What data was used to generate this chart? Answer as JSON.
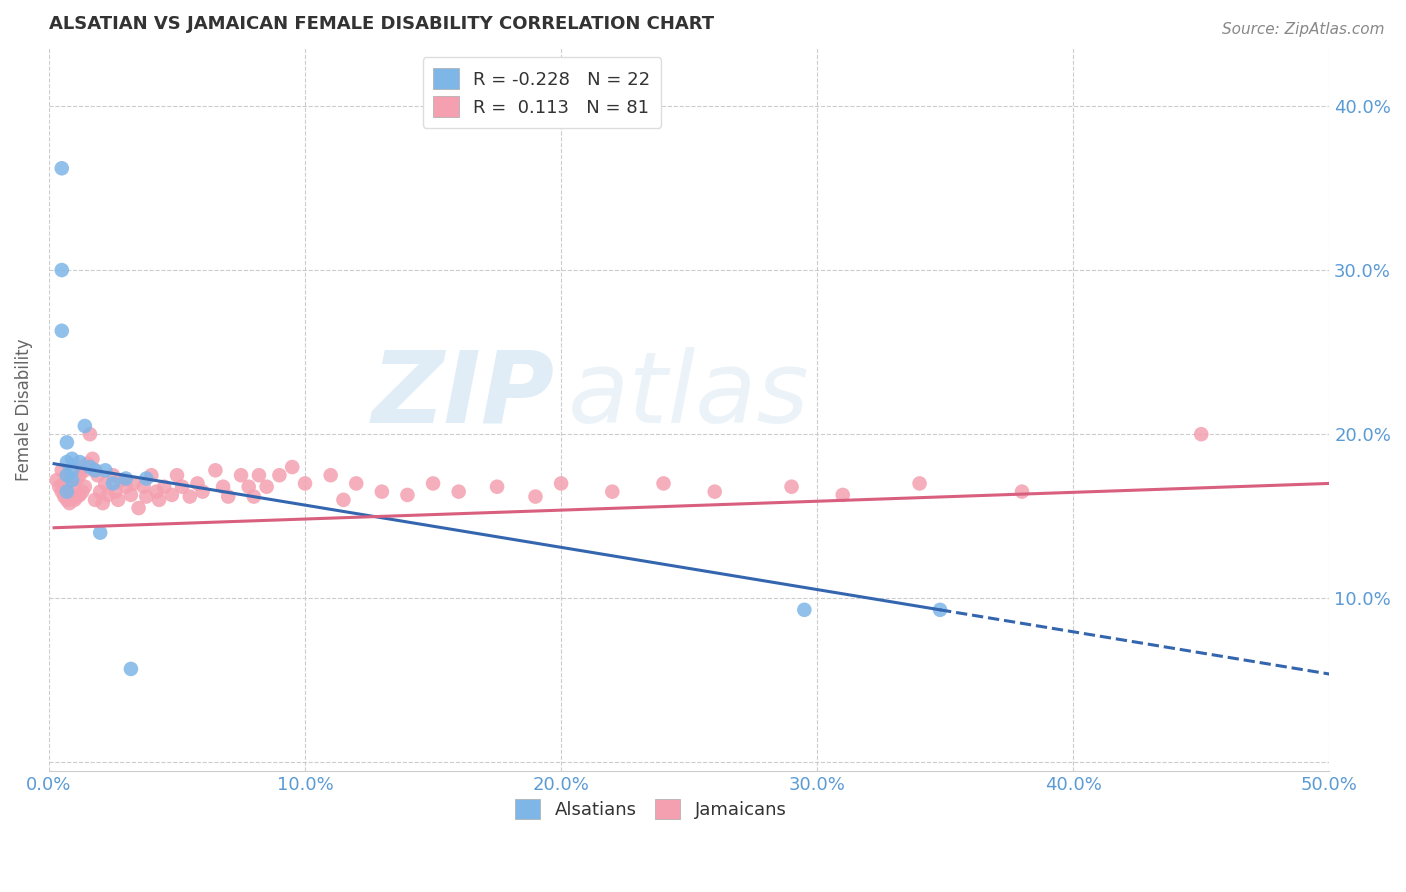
{
  "title": "ALSATIAN VS JAMAICAN FEMALE DISABILITY CORRELATION CHART",
  "source": "Source: ZipAtlas.com",
  "ylabel": "Female Disability",
  "xlim": [
    0.0,
    0.5
  ],
  "ylim": [
    -0.005,
    0.435
  ],
  "alsatian_color": "#7EB6E8",
  "jamaican_color": "#F4A0B0",
  "alsatian_R": -0.228,
  "alsatian_N": 22,
  "jamaican_R": 0.113,
  "jamaican_N": 81,
  "alsatian_line_color": "#3466AF",
  "jamaican_line_color": "#D95F7F",
  "background_color": "#FFFFFF",
  "grid_color": "#CCCCCC",
  "title_color": "#333333",
  "tick_label_color": "#5B9BD5",
  "alsatians_x": [
    0.005,
    0.005,
    0.005,
    0.007,
    0.007,
    0.007,
    0.007,
    0.009,
    0.009,
    0.009,
    0.012,
    0.014,
    0.016,
    0.018,
    0.02,
    0.022,
    0.025,
    0.03,
    0.032,
    0.038,
    0.295,
    0.348
  ],
  "alsatians_y": [
    0.362,
    0.3,
    0.263,
    0.195,
    0.183,
    0.175,
    0.165,
    0.185,
    0.178,
    0.172,
    0.183,
    0.205,
    0.18,
    0.178,
    0.14,
    0.178,
    0.17,
    0.173,
    0.057,
    0.173,
    0.093,
    0.093
  ],
  "jamaicans_x": [
    0.003,
    0.004,
    0.005,
    0.005,
    0.006,
    0.006,
    0.007,
    0.007,
    0.008,
    0.008,
    0.009,
    0.009,
    0.01,
    0.01,
    0.011,
    0.011,
    0.012,
    0.012,
    0.013,
    0.013,
    0.014,
    0.014,
    0.015,
    0.016,
    0.017,
    0.018,
    0.018,
    0.019,
    0.02,
    0.021,
    0.022,
    0.023,
    0.025,
    0.026,
    0.027,
    0.028,
    0.03,
    0.032,
    0.033,
    0.035,
    0.037,
    0.038,
    0.04,
    0.042,
    0.043,
    0.045,
    0.048,
    0.05,
    0.052,
    0.055,
    0.058,
    0.06,
    0.065,
    0.068,
    0.07,
    0.075,
    0.078,
    0.08,
    0.082,
    0.085,
    0.09,
    0.095,
    0.1,
    0.11,
    0.115,
    0.12,
    0.13,
    0.14,
    0.15,
    0.16,
    0.175,
    0.19,
    0.2,
    0.22,
    0.24,
    0.26,
    0.29,
    0.31,
    0.34,
    0.38,
    0.45
  ],
  "jamaicans_y": [
    0.172,
    0.168,
    0.178,
    0.165,
    0.17,
    0.162,
    0.175,
    0.16,
    0.173,
    0.158,
    0.172,
    0.163,
    0.17,
    0.16,
    0.173,
    0.162,
    0.175,
    0.163,
    0.18,
    0.165,
    0.178,
    0.168,
    0.182,
    0.2,
    0.185,
    0.178,
    0.16,
    0.175,
    0.165,
    0.158,
    0.17,
    0.163,
    0.175,
    0.165,
    0.16,
    0.172,
    0.168,
    0.163,
    0.17,
    0.155,
    0.168,
    0.162,
    0.175,
    0.165,
    0.16,
    0.168,
    0.163,
    0.175,
    0.168,
    0.162,
    0.17,
    0.165,
    0.178,
    0.168,
    0.162,
    0.175,
    0.168,
    0.162,
    0.175,
    0.168,
    0.175,
    0.18,
    0.17,
    0.175,
    0.16,
    0.17,
    0.165,
    0.163,
    0.17,
    0.165,
    0.168,
    0.162,
    0.17,
    0.165,
    0.17,
    0.165,
    0.168,
    0.163,
    0.17,
    0.165,
    0.2
  ]
}
